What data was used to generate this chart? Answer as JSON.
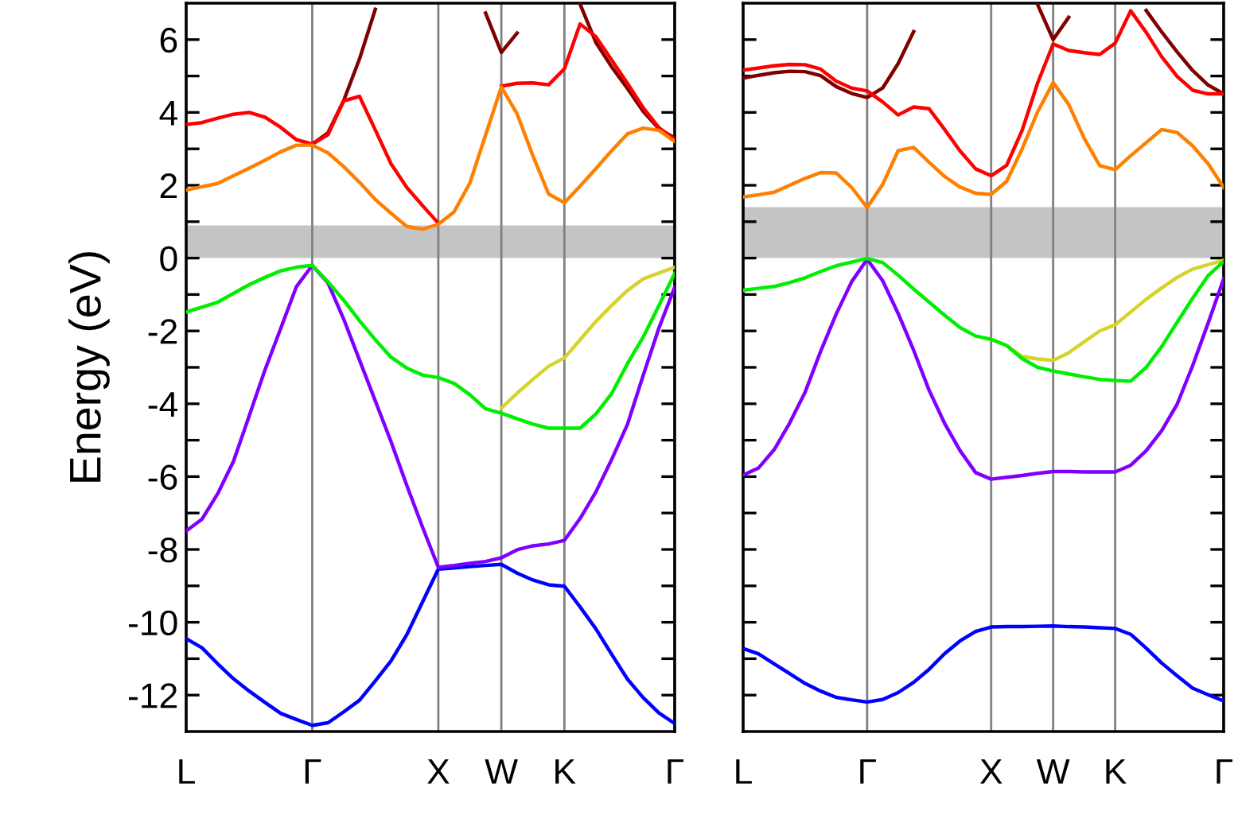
{
  "chart_data": [
    {
      "type": "line",
      "ylabel": "Energy (eV)",
      "grid": "x",
      "ylim": [
        -13,
        7
      ],
      "categories": [
        "L",
        null,
        null,
        null,
        null,
        null,
        null,
        null,
        "Γ",
        null,
        null,
        null,
        null,
        null,
        null,
        null,
        "X",
        null,
        null,
        null,
        "W",
        null,
        null,
        null,
        "K",
        null,
        null,
        null,
        null,
        null,
        null,
        "Γ"
      ],
      "yticks": [
        -12,
        {
          "value": -11,
          "label": null
        },
        -10,
        {
          "value": -9,
          "label": null
        },
        -8,
        {
          "value": -7,
          "label": null
        },
        -6,
        {
          "value": -5,
          "label": null
        },
        -4,
        {
          "value": -3,
          "label": null
        },
        -2,
        {
          "value": -1,
          "label": null
        },
        0,
        {
          "value": 1,
          "label": null
        },
        2,
        {
          "value": 3,
          "label": null
        },
        4,
        {
          "value": 5,
          "label": null
        },
        6
      ],
      "bands": [
        {
          "axis": "y",
          "from": 0,
          "to": 0.9,
          "color": "#c4c4c4"
        }
      ],
      "series": [
        {
          "color": "#0000ff",
          "values": [
            -10.45,
            -10.7,
            -11.14,
            -11.55,
            -11.89,
            -12.2,
            -12.5,
            -12.67,
            -12.83,
            -12.76,
            -12.46,
            -12.14,
            -11.61,
            -11.06,
            -10.34,
            -9.44,
            -8.54,
            -8.51,
            -8.47,
            -8.44,
            -8.41,
            -8.65,
            -8.84,
            -8.97,
            -9.01,
            -9.58,
            -10.18,
            -10.88,
            -11.56,
            -12.07,
            -12.49,
            -12.78
          ]
        },
        {
          "color": "#8000ff",
          "values": [
            -7.49,
            -7.17,
            -6.47,
            -5.58,
            -4.33,
            -3.07,
            -1.93,
            -0.78,
            -0.2,
            -0.68,
            -1.68,
            -2.8,
            -3.92,
            -5.04,
            -6.24,
            -7.39,
            -8.49,
            -8.44,
            -8.38,
            -8.33,
            -8.23,
            -8.01,
            -7.9,
            -7.85,
            -7.75,
            -7.15,
            -6.42,
            -5.53,
            -4.57,
            -3.22,
            -1.92,
            -0.8
          ]
        },
        {
          "color": "#d4d42a",
          "values": [
            null,
            null,
            null,
            null,
            null,
            null,
            null,
            null,
            null,
            null,
            null,
            null,
            null,
            null,
            null,
            null,
            null,
            null,
            null,
            null,
            -4.12,
            -3.71,
            -3.33,
            -2.97,
            -2.74,
            -2.24,
            -1.74,
            -1.3,
            -0.89,
            -0.57,
            -0.41,
            -0.25
          ]
        },
        {
          "color": "#00ee00",
          "values": [
            -1.48,
            -1.35,
            -1.21,
            -0.97,
            -0.73,
            -0.53,
            -0.35,
            -0.25,
            -0.2,
            -0.65,
            -1.16,
            -1.72,
            -2.24,
            -2.72,
            -3.02,
            -3.21,
            -3.28,
            -3.44,
            -3.75,
            -4.14,
            -4.26,
            -4.41,
            -4.56,
            -4.67,
            -4.67,
            -4.67,
            -4.28,
            -3.72,
            -2.9,
            -2.17,
            -1.3,
            -0.42
          ]
        },
        {
          "color": "#800000",
          "values": [
            null,
            null,
            null,
            null,
            null,
            null,
            null,
            null,
            3.13,
            3.44,
            4.33,
            5.47,
            6.83,
            null,
            null,
            null,
            null,
            null,
            null,
            6.73,
            5.65,
            6.18,
            null,
            null,
            null,
            6.97,
            5.92,
            5.25,
            4.66,
            4.03,
            3.55,
            3.3
          ]
        },
        {
          "color": "#ff0000",
          "values": [
            3.67,
            3.72,
            3.84,
            3.95,
            4.0,
            3.87,
            3.59,
            3.25,
            3.13,
            3.39,
            4.32,
            4.44,
            3.52,
            2.59,
            1.94,
            1.44,
            0.96,
            null,
            null,
            null,
            4.72,
            4.8,
            4.81,
            4.76,
            5.2,
            6.43,
            6.08,
            5.44,
            4.8,
            4.13,
            3.58,
            3.25
          ]
        },
        {
          "color": "#ff8000",
          "values": [
            1.87,
            1.96,
            2.05,
            2.26,
            2.47,
            2.69,
            2.92,
            3.1,
            3.1,
            2.89,
            2.51,
            2.08,
            1.61,
            1.23,
            0.87,
            0.79,
            0.93,
            1.27,
            2.06,
            3.38,
            4.7,
            3.96,
            2.81,
            1.76,
            1.52,
            1.98,
            2.46,
            2.95,
            3.41,
            3.57,
            3.51,
            3.2
          ]
        }
      ]
    },
    {
      "type": "line",
      "tick_labels": "x",
      "grid": "x",
      "ylim": [
        -13,
        7
      ],
      "categories": [
        "L",
        null,
        null,
        null,
        null,
        null,
        null,
        null,
        "Γ",
        null,
        null,
        null,
        null,
        null,
        null,
        null,
        "X",
        null,
        null,
        null,
        "W",
        null,
        null,
        null,
        "K",
        null,
        null,
        null,
        null,
        null,
        null,
        "Γ"
      ],
      "yticks": [
        -12,
        {
          "value": -11,
          "label": null
        },
        -10,
        {
          "value": -9,
          "label": null
        },
        -8,
        {
          "value": -7,
          "label": null
        },
        -6,
        {
          "value": -5,
          "label": null
        },
        -4,
        {
          "value": -3,
          "label": null
        },
        -2,
        {
          "value": -1,
          "label": null
        },
        0,
        {
          "value": 1,
          "label": null
        },
        2,
        {
          "value": 3,
          "label": null
        },
        4,
        {
          "value": 5,
          "label": null
        },
        6
      ],
      "bands": [
        {
          "axis": "y",
          "from": 0,
          "to": 1.4,
          "color": "#c4c4c4"
        }
      ],
      "series": [
        {
          "color": "#0000ff",
          "values": [
            -10.72,
            -10.87,
            -11.14,
            -11.41,
            -11.68,
            -11.89,
            -12.06,
            -12.13,
            -12.19,
            -12.12,
            -11.93,
            -11.65,
            -11.29,
            -10.86,
            -10.51,
            -10.25,
            -10.13,
            -10.12,
            -10.12,
            -10.11,
            -10.1,
            -10.12,
            -10.13,
            -10.15,
            -10.17,
            -10.33,
            -10.71,
            -11.12,
            -11.47,
            -11.81,
            -11.99,
            -12.16
          ]
        },
        {
          "color": "#8000ff",
          "values": [
            -5.96,
            -5.76,
            -5.26,
            -4.53,
            -3.68,
            -2.56,
            -1.54,
            -0.65,
            -0.03,
            -0.62,
            -1.52,
            -2.53,
            -3.63,
            -4.54,
            -5.29,
            -5.89,
            -6.07,
            -6.02,
            -5.97,
            -5.91,
            -5.86,
            -5.86,
            -5.87,
            -5.87,
            -5.87,
            -5.69,
            -5.29,
            -4.74,
            -4.01,
            -2.95,
            -1.78,
            -0.57
          ]
        },
        {
          "color": "#d4d42a",
          "values": [
            null,
            null,
            null,
            null,
            null,
            null,
            null,
            null,
            null,
            null,
            null,
            null,
            null,
            null,
            null,
            null,
            -2.23,
            -2.4,
            -2.7,
            -2.77,
            -2.81,
            -2.6,
            -2.3,
            -2.0,
            -1.83,
            -1.48,
            -1.13,
            -0.82,
            -0.53,
            -0.3,
            -0.18,
            -0.06
          ]
        },
        {
          "color": "#00ee00",
          "values": [
            -0.88,
            -0.83,
            -0.78,
            -0.67,
            -0.54,
            -0.37,
            -0.21,
            -0.11,
            -0.01,
            -0.12,
            -0.47,
            -0.85,
            -1.21,
            -1.57,
            -1.91,
            -2.14,
            -2.23,
            -2.4,
            -2.76,
            -3.0,
            -3.1,
            -3.18,
            -3.26,
            -3.33,
            -3.36,
            -3.38,
            -3.0,
            -2.43,
            -1.76,
            -1.1,
            -0.48,
            -0.09
          ]
        },
        {
          "color": "#800000",
          "values": [
            4.94,
            5.02,
            5.09,
            5.13,
            5.12,
            5.01,
            4.71,
            4.52,
            4.41,
            4.67,
            5.34,
            6.22,
            null,
            null,
            null,
            null,
            null,
            null,
            null,
            6.96,
            6.0,
            6.61,
            null,
            null,
            null,
            null,
            6.8,
            6.21,
            5.66,
            5.15,
            4.75,
            4.51
          ]
        },
        {
          "color": "#ff0000",
          "values": [
            5.16,
            5.22,
            5.28,
            5.32,
            5.31,
            5.19,
            4.86,
            4.67,
            4.59,
            4.29,
            3.93,
            4.15,
            4.1,
            3.53,
            2.94,
            2.45,
            2.26,
            2.55,
            3.51,
            4.81,
            5.88,
            5.7,
            5.64,
            5.59,
            5.9,
            6.79,
            6.2,
            5.53,
            4.99,
            4.61,
            4.51,
            4.51
          ]
        },
        {
          "color": "#ff8000",
          "values": [
            1.68,
            1.74,
            1.81,
            2.0,
            2.19,
            2.35,
            2.34,
            1.94,
            1.39,
            2.02,
            2.95,
            3.04,
            2.63,
            2.24,
            1.95,
            1.78,
            1.75,
            2.11,
            3.0,
            4.02,
            4.82,
            4.22,
            3.29,
            2.54,
            2.43,
            2.81,
            3.17,
            3.53,
            3.45,
            3.08,
            2.59,
            1.94
          ]
        }
      ]
    }
  ]
}
